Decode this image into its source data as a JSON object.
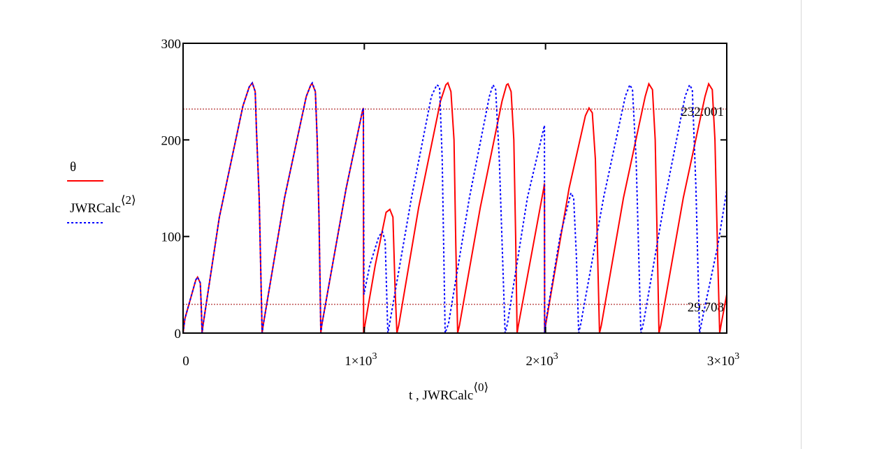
{
  "chart_data": {
    "type": "line",
    "title": "",
    "xlabel": "t , JWRCalc",
    "xlabel_superscript": "⟨0⟩",
    "ylabel": "",
    "xlim": [
      0,
      3000
    ],
    "ylim": [
      0,
      300
    ],
    "x_ticks": [
      {
        "value": 0,
        "label": "0"
      },
      {
        "value": 1000,
        "label": "1×10",
        "exp": "3"
      },
      {
        "value": 2000,
        "label": "2×10",
        "exp": "3"
      },
      {
        "value": 3000,
        "label": "3×10",
        "exp": "3"
      }
    ],
    "y_ticks": [
      {
        "value": 0,
        "label": "0"
      },
      {
        "value": 100,
        "label": "100"
      },
      {
        "value": 200,
        "label": "200"
      },
      {
        "value": 300,
        "label": "300"
      }
    ],
    "markers": [
      {
        "value": 232.001,
        "label": "232.001"
      },
      {
        "value": 29.708,
        "label": "29.708"
      }
    ],
    "legend_position": "left",
    "series": [
      {
        "name": "θ",
        "color": "#ff0000",
        "style": "solid",
        "points": [
          [
            0,
            0
          ],
          [
            10,
            15
          ],
          [
            40,
            35
          ],
          [
            70,
            55
          ],
          [
            80,
            58
          ],
          [
            95,
            52
          ],
          [
            100,
            30
          ],
          [
            105,
            0
          ],
          [
            110,
            8
          ],
          [
            200,
            120
          ],
          [
            330,
            235
          ],
          [
            365,
            255
          ],
          [
            382,
            259
          ],
          [
            398,
            250
          ],
          [
            405,
            210
          ],
          [
            420,
            140
          ],
          [
            436,
            0
          ],
          [
            442,
            8
          ],
          [
            560,
            140
          ],
          [
            680,
            245
          ],
          [
            705,
            257
          ],
          [
            713,
            258
          ],
          [
            730,
            250
          ],
          [
            740,
            200
          ],
          [
            750,
            120
          ],
          [
            760,
            0
          ],
          [
            765,
            8
          ],
          [
            900,
            150
          ],
          [
            990,
            230
          ],
          [
            995,
            233
          ],
          [
            996,
            0
          ],
          [
            1005,
            10
          ],
          [
            1060,
            70
          ],
          [
            1120,
            125
          ],
          [
            1141,
            128
          ],
          [
            1158,
            120
          ],
          [
            1170,
            45
          ],
          [
            1180,
            0
          ],
          [
            1190,
            8
          ],
          [
            1300,
            130
          ],
          [
            1420,
            240
          ],
          [
            1450,
            257
          ],
          [
            1461,
            259
          ],
          [
            1478,
            250
          ],
          [
            1495,
            200
          ],
          [
            1505,
            90
          ],
          [
            1515,
            0
          ],
          [
            1525,
            8
          ],
          [
            1640,
            130
          ],
          [
            1760,
            240
          ],
          [
            1785,
            257
          ],
          [
            1793,
            258
          ],
          [
            1810,
            250
          ],
          [
            1825,
            200
          ],
          [
            1835,
            100
          ],
          [
            1843,
            0
          ],
          [
            1850,
            8
          ],
          [
            1990,
            150
          ],
          [
            1994,
            155
          ],
          [
            1995,
            0
          ],
          [
            2000,
            8
          ],
          [
            2130,
            150
          ],
          [
            2220,
            225
          ],
          [
            2240,
            233
          ],
          [
            2258,
            228
          ],
          [
            2275,
            180
          ],
          [
            2290,
            60
          ],
          [
            2298,
            0
          ],
          [
            2308,
            8
          ],
          [
            2430,
            140
          ],
          [
            2550,
            245
          ],
          [
            2570,
            258
          ],
          [
            2590,
            252
          ],
          [
            2605,
            200
          ],
          [
            2618,
            80
          ],
          [
            2626,
            0
          ],
          [
            2636,
            8
          ],
          [
            2760,
            140
          ],
          [
            2880,
            245
          ],
          [
            2900,
            258
          ],
          [
            2920,
            252
          ],
          [
            2935,
            200
          ],
          [
            2950,
            80
          ],
          [
            2961,
            0
          ],
          [
            2970,
            10
          ],
          [
            2990,
            30
          ],
          [
            3000,
            40
          ]
        ]
      },
      {
        "name": "JWRCalc",
        "name_superscript": "⟨2⟩",
        "color": "#0000ff",
        "style": "dotted",
        "points": [
          [
            0,
            0
          ],
          [
            10,
            15
          ],
          [
            40,
            35
          ],
          [
            70,
            55
          ],
          [
            80,
            58
          ],
          [
            95,
            52
          ],
          [
            100,
            30
          ],
          [
            105,
            0
          ],
          [
            110,
            8
          ],
          [
            200,
            120
          ],
          [
            330,
            235
          ],
          [
            365,
            255
          ],
          [
            382,
            259
          ],
          [
            398,
            250
          ],
          [
            405,
            210
          ],
          [
            420,
            140
          ],
          [
            436,
            0
          ],
          [
            442,
            8
          ],
          [
            560,
            140
          ],
          [
            680,
            245
          ],
          [
            705,
            257
          ],
          [
            713,
            259
          ],
          [
            730,
            250
          ],
          [
            740,
            200
          ],
          [
            750,
            120
          ],
          [
            760,
            0
          ],
          [
            765,
            8
          ],
          [
            900,
            150
          ],
          [
            990,
            230
          ],
          [
            995,
            233
          ],
          [
            998,
            40
          ],
          [
            1030,
            70
          ],
          [
            1080,
            100
          ],
          [
            1100,
            105
          ],
          [
            1115,
            95
          ],
          [
            1125,
            30
          ],
          [
            1130,
            0
          ],
          [
            1140,
            10
          ],
          [
            1260,
            140
          ],
          [
            1370,
            245
          ],
          [
            1400,
            257
          ],
          [
            1415,
            255
          ],
          [
            1430,
            180
          ],
          [
            1446,
            0
          ],
          [
            1465,
            10
          ],
          [
            1580,
            140
          ],
          [
            1690,
            245
          ],
          [
            1710,
            257
          ],
          [
            1725,
            252
          ],
          [
            1745,
            180
          ],
          [
            1777,
            0
          ],
          [
            1790,
            10
          ],
          [
            1900,
            140
          ],
          [
            1994,
            215
          ],
          [
            1995,
            0
          ],
          [
            2000,
            10
          ],
          [
            2080,
            100
          ],
          [
            2140,
            145
          ],
          [
            2155,
            140
          ],
          [
            2170,
            80
          ],
          [
            2183,
            0
          ],
          [
            2195,
            10
          ],
          [
            2320,
            140
          ],
          [
            2440,
            245
          ],
          [
            2465,
            257
          ],
          [
            2480,
            252
          ],
          [
            2500,
            180
          ],
          [
            2526,
            0
          ],
          [
            2540,
            10
          ],
          [
            2660,
            140
          ],
          [
            2770,
            245
          ],
          [
            2795,
            257
          ],
          [
            2810,
            252
          ],
          [
            2830,
            150
          ],
          [
            2850,
            0
          ],
          [
            2860,
            10
          ],
          [
            2950,
            90
          ],
          [
            3000,
            148
          ]
        ]
      }
    ]
  }
}
